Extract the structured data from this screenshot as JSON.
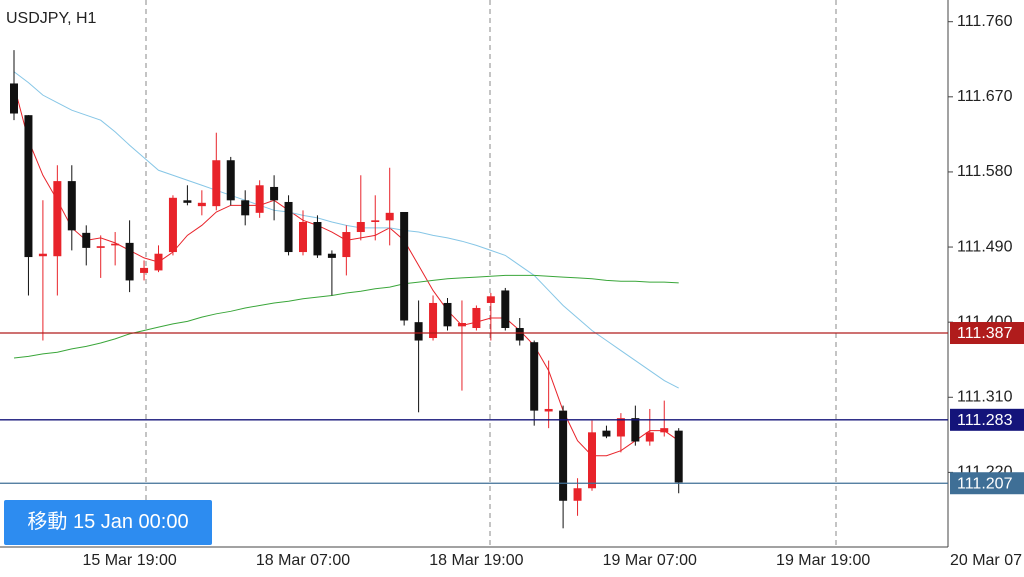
{
  "chart_data": {
    "type": "candlestick",
    "title": "USDJPY, H1",
    "categories": [
      null,
      null,
      null,
      null,
      null,
      null,
      null,
      null,
      "15 Mar 19:00",
      null,
      null,
      null,
      null,
      null,
      null,
      null,
      null,
      null,
      null,
      null,
      "18 Mar 07:00",
      null,
      null,
      null,
      null,
      null,
      null,
      null,
      null,
      null,
      null,
      null,
      "18 Mar 19:00",
      null,
      null,
      null,
      null,
      null,
      null,
      null,
      null,
      null,
      null,
      null,
      "19 Mar 07:00",
      null,
      null,
      null,
      null,
      null,
      null,
      null,
      null,
      null,
      null,
      null,
      "19 Mar 19:00",
      null,
      null,
      null,
      null,
      null,
      null,
      null,
      null,
      null,
      null,
      null,
      "20 Mar 07"
    ],
    "open": [
      111.686,
      111.648,
      111.479,
      111.479,
      111.569,
      111.507,
      111.489,
      111.492,
      111.495,
      111.459,
      111.462,
      111.484,
      111.546,
      111.539,
      111.539,
      111.594,
      111.546,
      111.531,
      111.562,
      111.544,
      111.484,
      111.52,
      111.482,
      111.478,
      111.508,
      111.52,
      111.522,
      111.532,
      111.4,
      111.381,
      111.423,
      111.395,
      111.393,
      111.423,
      111.438,
      111.393,
      111.376,
      111.293,
      111.294,
      111.186,
      111.201,
      111.27,
      111.263,
      111.285,
      111.257,
      111.268,
      111.27,
      null,
      null,
      null,
      null,
      null,
      null,
      null,
      null,
      null,
      null,
      null,
      null,
      null,
      null,
      null,
      null,
      null,
      null,
      null,
      null,
      null,
      null
    ],
    "high": [
      111.726,
      111.648,
      111.546,
      111.588,
      111.588,
      111.516,
      111.504,
      111.508,
      111.522,
      111.474,
      111.492,
      111.552,
      111.564,
      111.558,
      111.627,
      111.598,
      111.558,
      111.57,
      111.576,
      111.552,
      111.534,
      111.528,
      111.486,
      111.516,
      111.576,
      111.552,
      111.585,
      111.532,
      111.426,
      111.432,
      111.429,
      111.426,
      111.42,
      111.435,
      111.441,
      111.405,
      111.378,
      111.354,
      111.3,
      111.213,
      111.282,
      111.276,
      111.291,
      111.3,
      111.296,
      111.306,
      111.273,
      null,
      null,
      null,
      null,
      null,
      null,
      null,
      null,
      null,
      null,
      null,
      null,
      null,
      null,
      null,
      null,
      null,
      null,
      null,
      null,
      null,
      null
    ],
    "low": [
      111.642,
      111.432,
      111.378,
      111.432,
      111.486,
      111.468,
      111.453,
      111.468,
      111.436,
      111.45,
      111.46,
      111.48,
      111.54,
      111.528,
      111.534,
      111.54,
      111.516,
      111.525,
      111.522,
      111.48,
      111.48,
      111.477,
      111.432,
      111.456,
      111.498,
      111.498,
      111.492,
      111.396,
      111.292,
      111.378,
      111.39,
      111.318,
      111.39,
      111.378,
      111.39,
      111.372,
      111.276,
      111.273,
      111.153,
      111.168,
      111.198,
      111.261,
      111.244,
      111.252,
      111.252,
      111.263,
      111.195,
      null,
      null,
      null,
      null,
      null,
      null,
      null,
      null,
      null,
      null,
      null,
      null,
      null,
      null,
      null,
      null,
      null,
      null,
      null,
      null,
      null,
      null
    ],
    "close": [
      111.65,
      111.478,
      111.482,
      111.569,
      111.51,
      111.489,
      111.491,
      111.494,
      111.45,
      111.465,
      111.482,
      111.549,
      111.543,
      111.543,
      111.594,
      111.546,
      111.528,
      111.564,
      111.546,
      111.484,
      111.52,
      111.48,
      111.477,
      111.508,
      111.52,
      111.522,
      111.531,
      111.402,
      111.378,
      111.423,
      111.395,
      111.399,
      111.417,
      111.431,
      111.393,
      111.378,
      111.294,
      111.296,
      111.186,
      111.201,
      111.268,
      111.263,
      111.285,
      111.257,
      111.268,
      111.273,
      111.208,
      null,
      null,
      null,
      null,
      null,
      null,
      null,
      null,
      null,
      null,
      null,
      null,
      null,
      null,
      null,
      null,
      null,
      null,
      null,
      null,
      null,
      null
    ],
    "up_color": "#e8232a",
    "down_color": "#111111",
    "overlays": [
      {
        "color": "#e8232a",
        "values": [
          111.684,
          111.618,
          111.576,
          111.546,
          111.513,
          111.498,
          111.501,
          111.495,
          111.486,
          111.477,
          111.472,
          111.484,
          111.504,
          111.516,
          111.532,
          111.54,
          111.54,
          111.54,
          111.546,
          111.534,
          111.522,
          111.516,
          111.508,
          111.498,
          111.501,
          111.504,
          111.513,
          111.498,
          111.468,
          111.438,
          111.414,
          111.396,
          111.4,
          111.405,
          111.405,
          111.39,
          111.372,
          111.342,
          111.294,
          111.258,
          111.24,
          111.24,
          111.246,
          111.258,
          111.27,
          111.27,
          111.258,
          null,
          null,
          null,
          null,
          null,
          null,
          null,
          null,
          null,
          null,
          null,
          null,
          null,
          null,
          null,
          null,
          null,
          null,
          null,
          null,
          null,
          null
        ]
      },
      {
        "color": "#86c6e6",
        "values": [
          111.7,
          111.687,
          111.672,
          111.663,
          111.654,
          111.648,
          111.642,
          111.628,
          111.612,
          111.597,
          111.582,
          111.576,
          111.57,
          111.564,
          111.558,
          111.552,
          111.546,
          111.54,
          111.534,
          111.532,
          111.528,
          111.525,
          111.52,
          111.516,
          111.513,
          111.513,
          111.513,
          111.51,
          111.508,
          111.504,
          111.501,
          111.497,
          111.492,
          111.486,
          111.48,
          111.468,
          111.456,
          111.438,
          111.42,
          111.405,
          111.39,
          111.378,
          111.366,
          111.354,
          111.342,
          111.33,
          111.321,
          null,
          null,
          null,
          null,
          null,
          null,
          null,
          null,
          null,
          null,
          null,
          null,
          null,
          null,
          null,
          null,
          null,
          null,
          null,
          null,
          null,
          null
        ]
      },
      {
        "color": "#3aa63a",
        "values": [
          111.357,
          111.359,
          111.362,
          111.364,
          111.368,
          111.371,
          111.375,
          111.38,
          111.386,
          111.39,
          111.394,
          111.398,
          111.401,
          111.406,
          111.41,
          111.413,
          111.417,
          111.42,
          111.423,
          111.425,
          111.428,
          111.43,
          111.432,
          111.435,
          111.437,
          111.44,
          111.442,
          111.446,
          111.448,
          111.45,
          111.452,
          111.453,
          111.454,
          111.455,
          111.456,
          111.456,
          111.456,
          111.455,
          111.454,
          111.453,
          111.452,
          111.45,
          111.449,
          111.449,
          111.448,
          111.448,
          111.447,
          null,
          null,
          null,
          null,
          null,
          null,
          null,
          null,
          null,
          null,
          null,
          null,
          null,
          null,
          null,
          null,
          null,
          null,
          null,
          null,
          null,
          null
        ]
      }
    ],
    "hlines": [
      {
        "value": 111.387,
        "color": "#b01c1c"
      },
      {
        "value": 111.283,
        "color": "#14147a"
      },
      {
        "value": 111.207,
        "color": "#3f6f96"
      }
    ],
    "ylim": [
      111.133,
      111.786
    ],
    "yticks": [
      {
        "value": 111.76,
        "label": "111.760"
      },
      {
        "value": 111.67,
        "label": "111.670"
      },
      {
        "value": 111.58,
        "label": "111.580"
      },
      {
        "value": 111.49,
        "label": "111.490"
      },
      {
        "value": 111.4,
        "label": "111.400"
      },
      {
        "value": 111.31,
        "label": "111.310"
      },
      {
        "value": 111.22,
        "label": "111.220"
      }
    ]
  },
  "ui": {
    "goto_button": "移動 15 Jan 00:00"
  }
}
